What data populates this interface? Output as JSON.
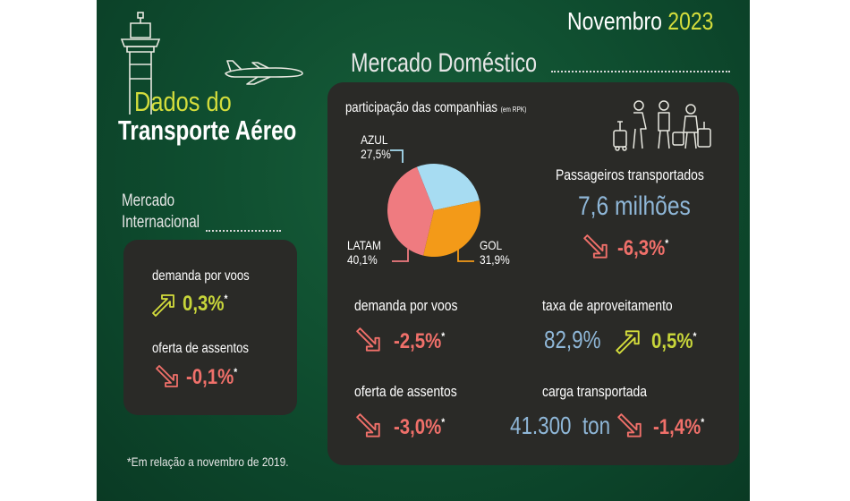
{
  "header": {
    "month": "Novembro",
    "year": "2023",
    "title_line1": "Dados do",
    "title_line2": "Transporte Aéreo"
  },
  "international": {
    "title_line1": "Mercado",
    "title_line2": "Internacional",
    "demand_label": "demanda por voos",
    "demand_value": "0,3%",
    "demand_trend": "up",
    "seats_label": "oferta de assentos",
    "seats_value": "-0,1%",
    "seats_trend": "down"
  },
  "footnote": "*Em relação a novembro de 2019.",
  "domestic": {
    "title": "Mercado Doméstico",
    "share_title": "participação das companhias",
    "share_unit": "(em RPK)",
    "passengers_label": "Passageiros transportados",
    "passengers_value": "7,6 milhões",
    "passengers_change": "-6,3%",
    "demand_label": "demanda por voos",
    "demand_value": "-2,5%",
    "seats_label": "oferta de assentos",
    "seats_value": "-3,0%",
    "load_factor_label": "taxa de aproveitamento",
    "load_factor_value": "82,9%",
    "load_factor_change": "0,5%",
    "cargo_label": "carga transportada",
    "cargo_value": "41.300",
    "cargo_unit": "ton",
    "cargo_change": "-1,4%"
  },
  "chart_data": {
    "type": "pie",
    "title": "participação das companhias (em RPK)",
    "slices": [
      {
        "name": "AZUL",
        "label": "27,5%",
        "value": 27.5,
        "color": "#a7dcf2"
      },
      {
        "name": "GOL",
        "label": "31,9%",
        "value": 31.9,
        "color": "#f39a18"
      },
      {
        "name": "LATAM",
        "label": "40,1%",
        "value": 40.1,
        "color": "#ef7b80"
      }
    ]
  },
  "colors": {
    "background": "#0d4a2e",
    "panel": "#2a2a27",
    "accent_yellow": "#d4dd3c",
    "positive": "#c7d53a",
    "negative": "#f0706a",
    "number_blue": "#8fb7d8"
  },
  "icons": [
    "control-tower-icon",
    "airplane-icon",
    "travelers-icon",
    "arrow-up-icon",
    "arrow-down-icon"
  ]
}
